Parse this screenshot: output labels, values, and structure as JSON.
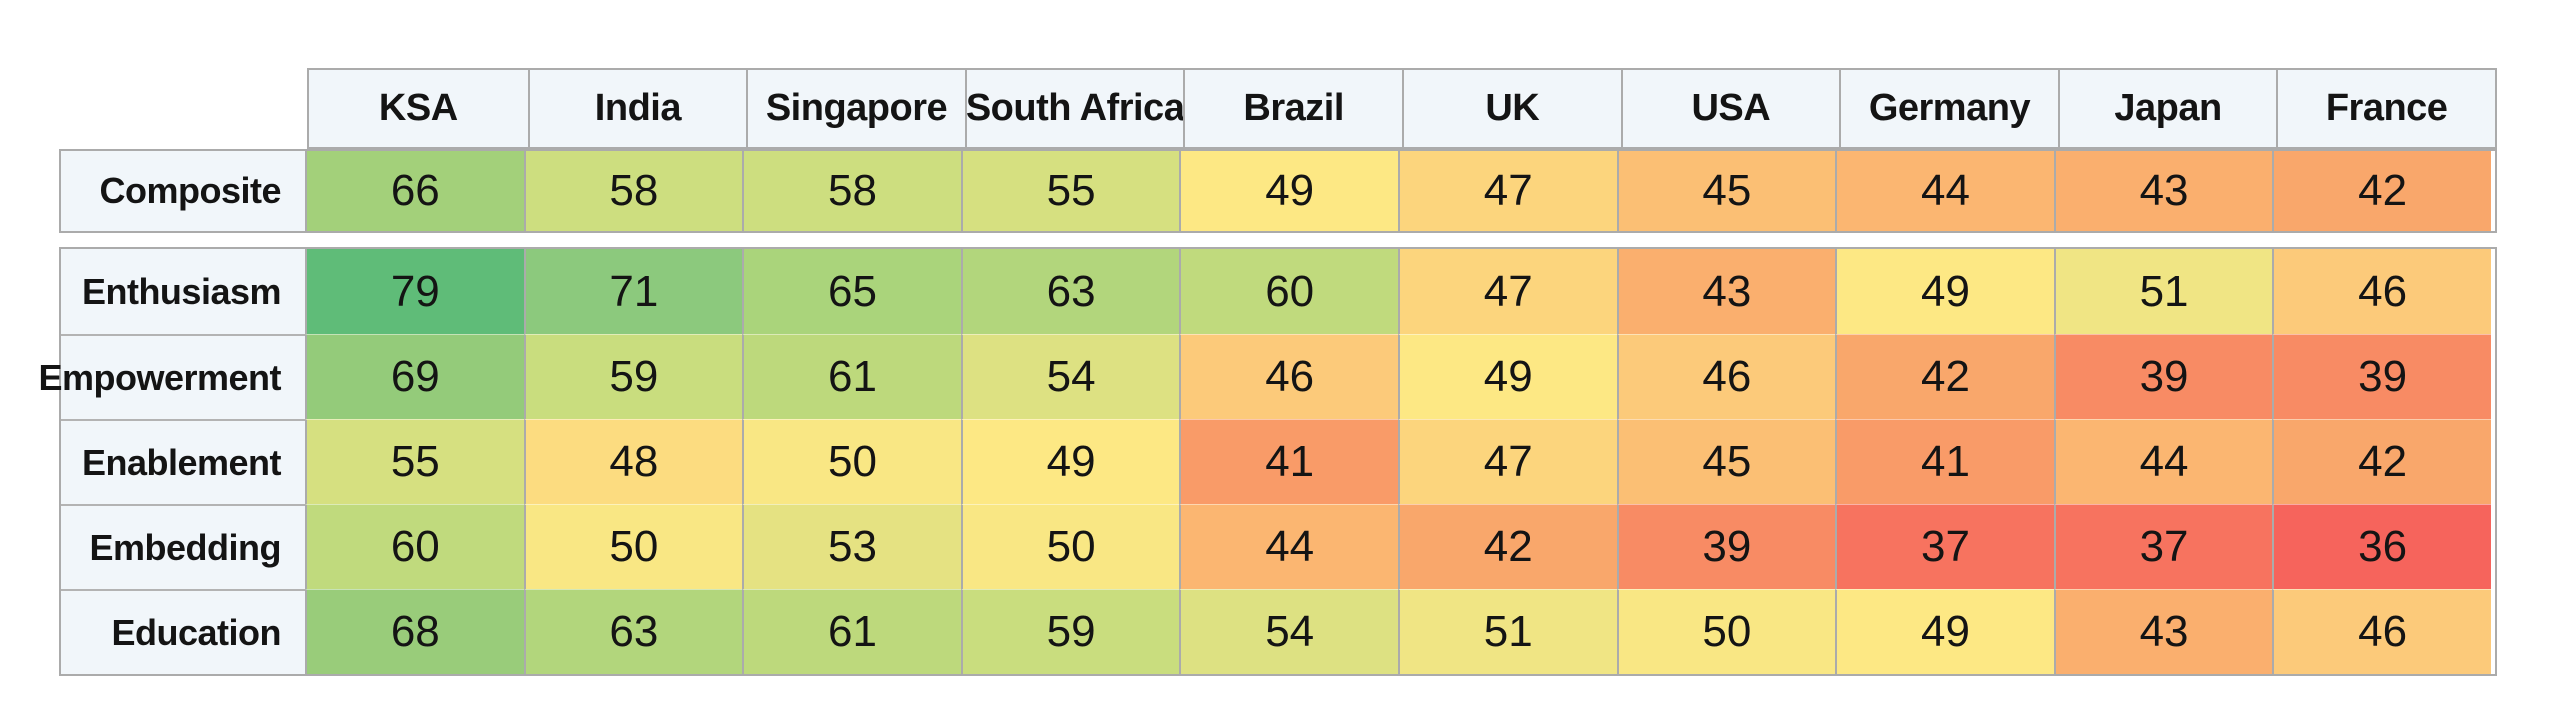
{
  "table": {
    "columns": [
      "KSA",
      "India",
      "Singapore",
      "South Africa",
      "Brazil",
      "UK",
      "USA",
      "Germany",
      "Japan",
      "France"
    ],
    "composite_row": {
      "label": "Composite",
      "values": [
        66,
        58,
        58,
        55,
        49,
        47,
        45,
        44,
        43,
        42
      ]
    },
    "rows": [
      {
        "label": "Enthusiasm",
        "values": [
          79,
          71,
          65,
          63,
          60,
          47,
          43,
          49,
          51,
          46
        ]
      },
      {
        "label": "Empowerment",
        "values": [
          69,
          59,
          61,
          54,
          46,
          49,
          46,
          42,
          39,
          39
        ]
      },
      {
        "label": "Enablement",
        "values": [
          55,
          48,
          50,
          49,
          41,
          47,
          45,
          41,
          44,
          42
        ]
      },
      {
        "label": "Embedding",
        "values": [
          60,
          50,
          53,
          50,
          44,
          42,
          39,
          37,
          37,
          36
        ]
      },
      {
        "label": "Education",
        "values": [
          68,
          63,
          61,
          59,
          54,
          51,
          50,
          49,
          43,
          46
        ]
      }
    ]
  },
  "colors": {
    "header_bg": "#f1f6fa",
    "label_bg": "#f1f6fa",
    "border": "#ababab",
    "text": "#141414",
    "scale": {
      "36": "#f6645c",
      "37": "#f7735f",
      "39": "#f88b64",
      "41": "#f99b68",
      "42": "#f9a76b",
      "43": "#faaf6e",
      "44": "#fbb671",
      "45": "#fbbf74",
      "46": "#fcca7a",
      "47": "#fcd57d",
      "48": "#fcdc80",
      "49": "#fde884",
      "50": "#f9e784",
      "51": "#f0e584",
      "53": "#e5e282",
      "54": "#dde182",
      "55": "#d6e080",
      "58": "#cdde7f",
      "59": "#c9dd7e",
      "60": "#c0da7d",
      "61": "#bdd97c",
      "63": "#b2d67c",
      "65": "#aad47b",
      "66": "#a3d07a",
      "68": "#99cc7a",
      "69": "#94cb7a",
      "71": "#8cc97d",
      "79": "#5fbc78"
    }
  },
  "chart_data": {
    "type": "heatmap",
    "columns": [
      "KSA",
      "India",
      "Singapore",
      "South Africa",
      "Brazil",
      "UK",
      "USA",
      "Germany",
      "Japan",
      "France"
    ],
    "rows": [
      "Composite",
      "Enthusiasm",
      "Empowerment",
      "Enablement",
      "Embedding",
      "Education"
    ],
    "matrix": [
      [
        66,
        58,
        58,
        55,
        49,
        47,
        45,
        44,
        43,
        42
      ],
      [
        79,
        71,
        65,
        63,
        60,
        47,
        43,
        49,
        51,
        46
      ],
      [
        69,
        59,
        61,
        54,
        46,
        49,
        46,
        42,
        39,
        39
      ],
      [
        55,
        48,
        50,
        49,
        41,
        47,
        45,
        41,
        44,
        42
      ],
      [
        60,
        50,
        53,
        50,
        44,
        42,
        39,
        37,
        37,
        36
      ],
      [
        68,
        63,
        61,
        59,
        54,
        51,
        50,
        49,
        43,
        46
      ]
    ],
    "color_scale": {
      "low_color": "#f6645c",
      "mid_color": "#fde884",
      "high_color": "#5fbc78",
      "domain": [
        36,
        49,
        79
      ]
    },
    "layout": {
      "composite_row_separated": true,
      "grid": true,
      "legend": false
    }
  }
}
